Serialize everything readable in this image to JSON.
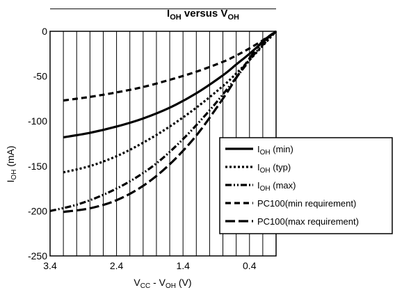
{
  "chart_data": {
    "type": "line",
    "title": {
      "main": "I",
      "main_sub": "OH",
      "mid": " versus V",
      "end_sub": "OH"
    },
    "xlabel": {
      "a": "V",
      "a_sub": "CC",
      "b": " - V",
      "b_sub": "OH",
      "c": " (V)"
    },
    "ylabel": {
      "a": "I",
      "a_sub": "OH",
      "b": " (mA)"
    },
    "xlim": [
      3.4,
      0
    ],
    "ylim": [
      -250,
      0
    ],
    "x_ticks": [
      "3.4",
      "2.4",
      "1.4",
      "0.4"
    ],
    "x_tick_values": [
      3.4,
      2.4,
      1.4,
      0.4
    ],
    "y_ticks": [
      "0",
      "-50",
      "-100",
      "-150",
      "-200",
      "-250"
    ],
    "y_tick_values": [
      0,
      -50,
      -100,
      -150,
      -200,
      -250
    ],
    "grid": true,
    "legend_position": "right",
    "series": [
      {
        "key": "ioh_min",
        "legend": {
          "a": "I",
          "a_sub": "OH",
          "b": " (min)"
        },
        "dash": "solid",
        "x": [
          3.2,
          2.8,
          2.4,
          2.0,
          1.6,
          1.2,
          0.8,
          0.6,
          0.4,
          0.2,
          0.0
        ],
        "y": [
          -118,
          -113,
          -106,
          -97,
          -85,
          -69,
          -49,
          -37,
          -25,
          -12,
          0
        ]
      },
      {
        "key": "ioh_typ",
        "legend": {
          "a": "I",
          "a_sub": "OH",
          "b": " (typ)"
        },
        "dash": "dot",
        "x": [
          3.2,
          2.8,
          2.4,
          2.0,
          1.6,
          1.2,
          0.8,
          0.6,
          0.4,
          0.2,
          0.0
        ],
        "y": [
          -157,
          -150,
          -139,
          -124,
          -106,
          -85,
          -61,
          -47,
          -32,
          -16,
          0
        ]
      },
      {
        "key": "ioh_max",
        "legend": {
          "a": "I",
          "a_sub": "OH",
          "b": " (max)"
        },
        "dash": "dashdot",
        "x": [
          3.4,
          3.0,
          2.6,
          2.2,
          1.8,
          1.4,
          1.0,
          0.7,
          0.5,
          0.3,
          0.0
        ],
        "y": [
          -200,
          -193,
          -182,
          -167,
          -147,
          -120,
          -88,
          -61,
          -42,
          -23,
          0
        ]
      },
      {
        "key": "pc100_min",
        "legend": {
          "a": "PC100(min requirement)"
        },
        "dash": "short-dash",
        "x": [
          3.2,
          2.8,
          2.4,
          2.0,
          1.6,
          1.2,
          0.8,
          0.6,
          0.4,
          0.2,
          0.0
        ],
        "y": [
          -77,
          -73,
          -68,
          -62,
          -54,
          -45,
          -34,
          -27,
          -19,
          -10,
          0
        ]
      },
      {
        "key": "pc100_max",
        "legend": {
          "a": "PC100(max requirement)"
        },
        "dash": "long-dash",
        "x": [
          3.2,
          2.8,
          2.4,
          2.0,
          1.6,
          1.2,
          0.8,
          0.6,
          0.4,
          0.3,
          0.2,
          0.0
        ],
        "y": [
          -201,
          -197,
          -188,
          -172,
          -148,
          -116,
          -75,
          -52,
          -30,
          -20,
          -11,
          0
        ]
      }
    ]
  }
}
